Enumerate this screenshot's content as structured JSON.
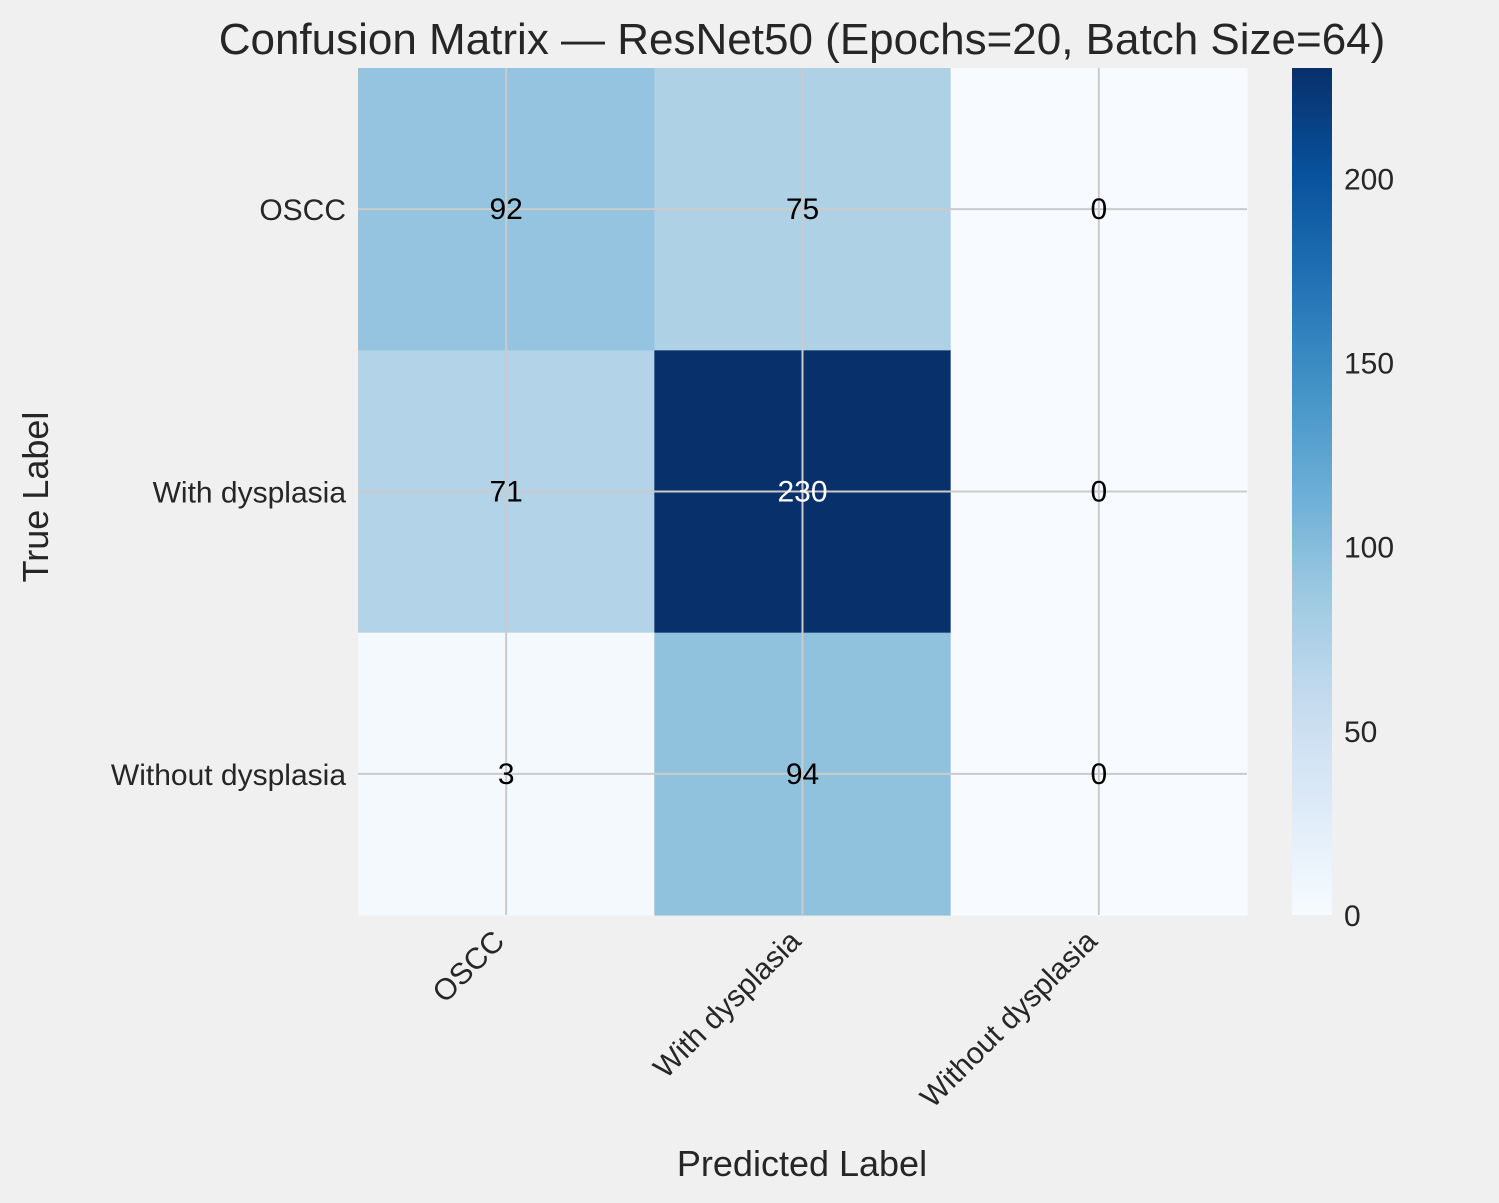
{
  "colors": {
    "figure_background": "#f0f0f0",
    "grid": "#cbcbcb",
    "text": "#262626",
    "cmap": "Blues",
    "cmap_stops": [
      "#f7fbff",
      "#deebf7",
      "#c6dbef",
      "#9ecae1",
      "#6baed6",
      "#4292c6",
      "#2171b5",
      "#08519c",
      "#08306b"
    ]
  },
  "chart_data": {
    "type": "heatmap",
    "title": "Confusion Matrix — ResNet50 (Epochs=20, Batch Size=64)",
    "xlabel": "Predicted Label",
    "ylabel": "True Label",
    "x_categories": [
      "OSCC",
      "With dysplasia",
      "Without dysplasia"
    ],
    "y_categories": [
      "OSCC",
      "With dysplasia",
      "Without dysplasia"
    ],
    "values": [
      [
        92,
        75,
        0
      ],
      [
        71,
        230,
        0
      ],
      [
        3,
        94,
        0
      ]
    ],
    "color_range": [
      0,
      230
    ],
    "colorbar_ticks": [
      0,
      50,
      100,
      150,
      200
    ],
    "grid": true
  }
}
